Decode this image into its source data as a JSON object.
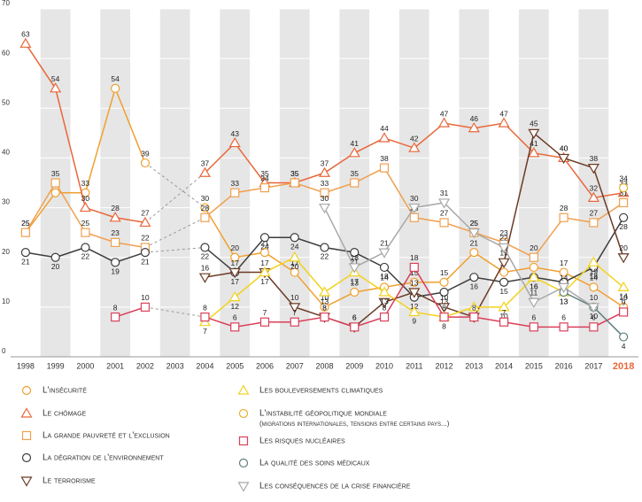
{
  "chart_data": {
    "type": "line",
    "categories": [
      "1998",
      "1999",
      "2000",
      "2001",
      "2002",
      "2003",
      "2004",
      "2005",
      "2006",
      "2007",
      "2008",
      "2009",
      "2010",
      "2011",
      "2012",
      "2013",
      "2014",
      "2015",
      "2016",
      "2017",
      "2018"
    ],
    "ylim": [
      0,
      70
    ],
    "yticks": [
      0,
      10,
      20,
      30,
      40,
      50,
      60,
      70
    ],
    "grid": true,
    "series": [
      {
        "name": "L'insécurité",
        "color": "#f0a030",
        "marker": "circle",
        "values": [
          25,
          33,
          33,
          54,
          39,
          null,
          30,
          20,
          21,
          17,
          10,
          13,
          14,
          15,
          15,
          21,
          17,
          18,
          17,
          14,
          10
        ]
      },
      {
        "name": "Le chômage",
        "color": "#e8673a",
        "marker": "triangle-up",
        "values": [
          63,
          54,
          30,
          28,
          27,
          null,
          37,
          43,
          35,
          35,
          37,
          41,
          44,
          42,
          47,
          46,
          47,
          41,
          40,
          32,
          33
        ]
      },
      {
        "name": "La grande pauvreté et l'exclusion",
        "color": "#f0a050",
        "marker": "square",
        "values": [
          25,
          35,
          25,
          23,
          22,
          null,
          28,
          33,
          34,
          35,
          33,
          35,
          38,
          28,
          27,
          25,
          23,
          20,
          28,
          27,
          31
        ]
      },
      {
        "name": "La dégration de l'environnement",
        "color": "#3d3d3d",
        "marker": "circle",
        "values": [
          21,
          20,
          22,
          19,
          21,
          null,
          22,
          17,
          24,
          24,
          22,
          21,
          18,
          12,
          13,
          16,
          15,
          16,
          15,
          18,
          28
        ]
      },
      {
        "name": "Le terrorisme",
        "color": "#6b3a24",
        "marker": "triangle-down",
        "values": [
          null,
          null,
          null,
          null,
          null,
          null,
          16,
          17,
          17,
          10,
          8,
          6,
          11,
          13,
          10,
          8,
          19,
          45,
          40,
          38,
          20
        ]
      },
      {
        "name": "Les bouleversements climatiques",
        "color": "#f2d21e",
        "marker": "triangle-up",
        "values": [
          null,
          null,
          null,
          null,
          null,
          null,
          7,
          12,
          17,
          20,
          13,
          17,
          13,
          9,
          8,
          10,
          10,
          16,
          13,
          19,
          14
        ]
      },
      {
        "name": "L'instabilité géopolitique mondiale",
        "subtitle": "(migrations internationales, tensions entre certains pays...)",
        "color": "#e8b030",
        "marker": "circle",
        "values": [
          null,
          null,
          null,
          null,
          null,
          null,
          null,
          null,
          null,
          null,
          null,
          null,
          null,
          null,
          null,
          null,
          null,
          null,
          null,
          null,
          34
        ]
      },
      {
        "name": "Les risques nucléaires",
        "color": "#d9405a",
        "marker": "square",
        "values": [
          null,
          null,
          null,
          8,
          10,
          null,
          8,
          6,
          7,
          7,
          8,
          6,
          8,
          18,
          8,
          8,
          7,
          6,
          6,
          6,
          9
        ]
      },
      {
        "name": "La qualité des soins médicaux",
        "color": "#5f7f80",
        "marker": "circle",
        "values": [
          null,
          null,
          null,
          null,
          null,
          null,
          null,
          null,
          null,
          null,
          null,
          null,
          null,
          null,
          null,
          null,
          null,
          null,
          13,
          10,
          4
        ]
      },
      {
        "name": "Les conséquences de la crise financière",
        "color": "#a8a8a8",
        "marker": "triangle-down",
        "values": [
          null,
          null,
          null,
          null,
          null,
          null,
          null,
          null,
          null,
          null,
          30,
          18,
          21,
          30,
          31,
          25,
          22,
          11,
          14,
          10,
          null
        ]
      }
    ]
  }
}
